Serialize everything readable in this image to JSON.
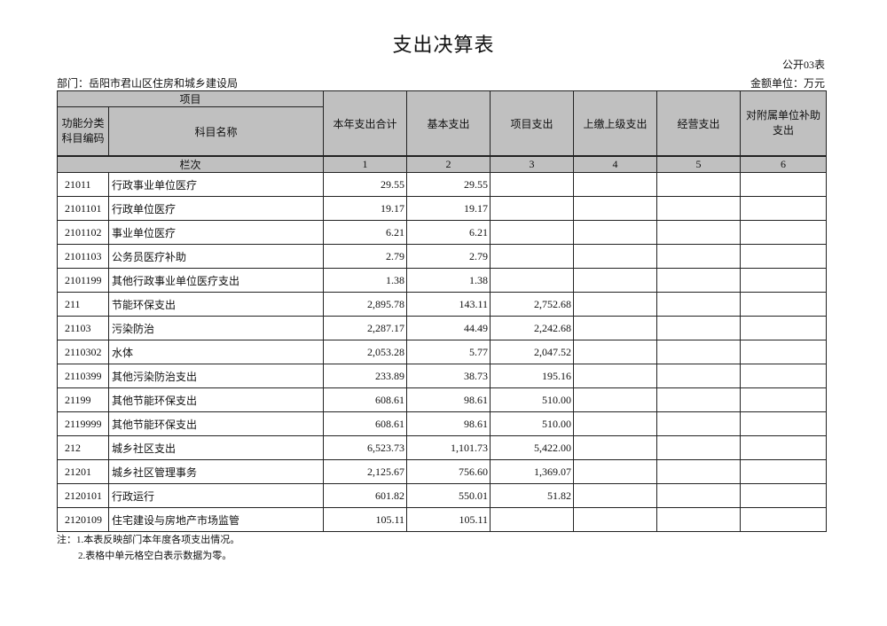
{
  "title": "支出决算表",
  "form_code": "公开03表",
  "department": "部门：岳阳市君山区住房和城乡建设局",
  "unit": "金额单位：万元",
  "table": {
    "header_group": "项目",
    "col_code": "功能分类科目编码",
    "col_name": "科目名称",
    "columns": [
      "本年支出合计",
      "基本支出",
      "项目支出",
      "上缴上级支出",
      "经营支出",
      "对附属单位补助支出"
    ],
    "index_label": "栏次",
    "index_numbers": [
      "1",
      "2",
      "3",
      "4",
      "5",
      "6"
    ],
    "rows": [
      {
        "code": "21011",
        "name": "行政事业单位医疗",
        "v": [
          "29.55",
          "29.55",
          "",
          "",
          "",
          ""
        ]
      },
      {
        "code": "2101101",
        "name": "行政单位医疗",
        "v": [
          "19.17",
          "19.17",
          "",
          "",
          "",
          ""
        ]
      },
      {
        "code": "2101102",
        "name": "事业单位医疗",
        "v": [
          "6.21",
          "6.21",
          "",
          "",
          "",
          ""
        ]
      },
      {
        "code": "2101103",
        "name": "公务员医疗补助",
        "v": [
          "2.79",
          "2.79",
          "",
          "",
          "",
          ""
        ]
      },
      {
        "code": "2101199",
        "name": "其他行政事业单位医疗支出",
        "v": [
          "1.38",
          "1.38",
          "",
          "",
          "",
          ""
        ]
      },
      {
        "code": "211",
        "name": "节能环保支出",
        "v": [
          "2,895.78",
          "143.11",
          "2,752.68",
          "",
          "",
          ""
        ]
      },
      {
        "code": "21103",
        "name": "污染防治",
        "v": [
          "2,287.17",
          "44.49",
          "2,242.68",
          "",
          "",
          ""
        ]
      },
      {
        "code": "2110302",
        "name": "水体",
        "v": [
          "2,053.28",
          "5.77",
          "2,047.52",
          "",
          "",
          ""
        ]
      },
      {
        "code": "2110399",
        "name": "其他污染防治支出",
        "v": [
          "233.89",
          "38.73",
          "195.16",
          "",
          "",
          ""
        ]
      },
      {
        "code": "21199",
        "name": "其他节能环保支出",
        "v": [
          "608.61",
          "98.61",
          "510.00",
          "",
          "",
          ""
        ]
      },
      {
        "code": "2119999",
        "name": "其他节能环保支出",
        "v": [
          "608.61",
          "98.61",
          "510.00",
          "",
          "",
          ""
        ]
      },
      {
        "code": "212",
        "name": "城乡社区支出",
        "v": [
          "6,523.73",
          "1,101.73",
          "5,422.00",
          "",
          "",
          ""
        ]
      },
      {
        "code": "21201",
        "name": "城乡社区管理事务",
        "v": [
          "2,125.67",
          "756.60",
          "1,369.07",
          "",
          "",
          ""
        ]
      },
      {
        "code": "2120101",
        "name": "行政运行",
        "v": [
          "601.82",
          "550.01",
          "51.82",
          "",
          "",
          ""
        ]
      },
      {
        "code": "2120109",
        "name": "住宅建设与房地产市场监管",
        "v": [
          "105.11",
          "105.11",
          "",
          "",
          "",
          ""
        ]
      }
    ]
  },
  "notes": [
    "注：1.本表反映部门本年度各项支出情况。",
    "2.表格中单元格空白表示数据为零。"
  ]
}
